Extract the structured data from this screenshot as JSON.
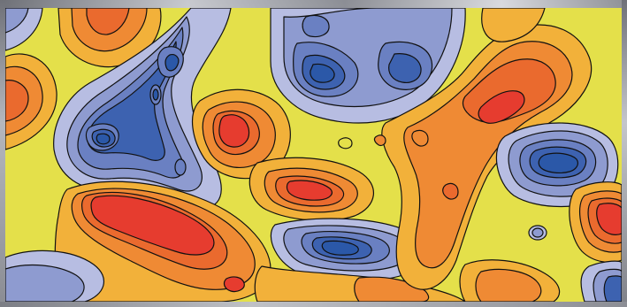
{
  "palette": {
    "yellow": "#e4e04a",
    "light_orange": "#f2b13a",
    "orange": "#ef8a34",
    "dark_orange": "#ea6a2e",
    "red": "#e63c2f",
    "light_blue": "#b7bde2",
    "mid_blue": "#8e9bd0",
    "blue": "#6a80c2",
    "dark_blue": "#3d62b0",
    "deep_blue": "#2b58a8",
    "contour_line": "#111111",
    "frame_gray": "#9a9ca4"
  },
  "image": {
    "kind": "filled contour map",
    "description_visible_text": ""
  }
}
